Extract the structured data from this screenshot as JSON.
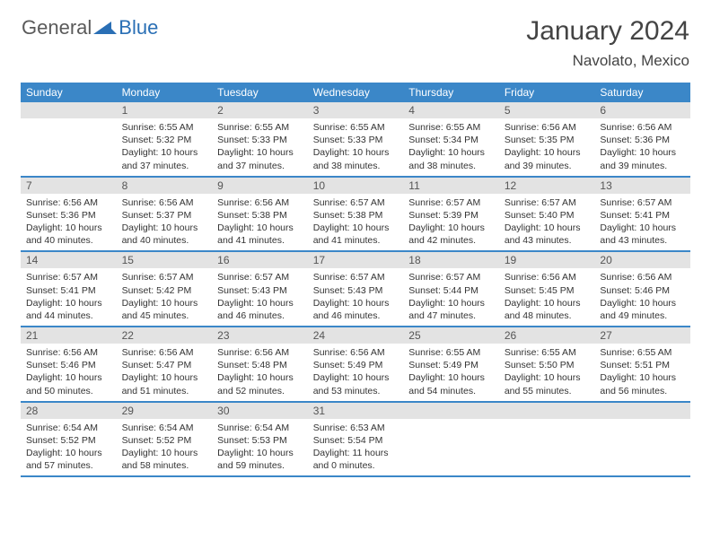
{
  "brand": {
    "part1": "General",
    "part2": "Blue"
  },
  "title": "January 2024",
  "location": "Navolato, Mexico",
  "colors": {
    "header_bg": "#3b87c8",
    "daynum_bg": "#e3e3e3",
    "border": "#3b87c8",
    "text": "#333333",
    "brand_gray": "#5a5a5a",
    "brand_blue": "#2a6fb5"
  },
  "weekdays": [
    "Sunday",
    "Monday",
    "Tuesday",
    "Wednesday",
    "Thursday",
    "Friday",
    "Saturday"
  ],
  "start_offset": 1,
  "days": [
    {
      "n": 1,
      "sr": "6:55 AM",
      "ss": "5:32 PM",
      "dl": "10 hours and 37 minutes."
    },
    {
      "n": 2,
      "sr": "6:55 AM",
      "ss": "5:33 PM",
      "dl": "10 hours and 37 minutes."
    },
    {
      "n": 3,
      "sr": "6:55 AM",
      "ss": "5:33 PM",
      "dl": "10 hours and 38 minutes."
    },
    {
      "n": 4,
      "sr": "6:55 AM",
      "ss": "5:34 PM",
      "dl": "10 hours and 38 minutes."
    },
    {
      "n": 5,
      "sr": "6:56 AM",
      "ss": "5:35 PM",
      "dl": "10 hours and 39 minutes."
    },
    {
      "n": 6,
      "sr": "6:56 AM",
      "ss": "5:36 PM",
      "dl": "10 hours and 39 minutes."
    },
    {
      "n": 7,
      "sr": "6:56 AM",
      "ss": "5:36 PM",
      "dl": "10 hours and 40 minutes."
    },
    {
      "n": 8,
      "sr": "6:56 AM",
      "ss": "5:37 PM",
      "dl": "10 hours and 40 minutes."
    },
    {
      "n": 9,
      "sr": "6:56 AM",
      "ss": "5:38 PM",
      "dl": "10 hours and 41 minutes."
    },
    {
      "n": 10,
      "sr": "6:57 AM",
      "ss": "5:38 PM",
      "dl": "10 hours and 41 minutes."
    },
    {
      "n": 11,
      "sr": "6:57 AM",
      "ss": "5:39 PM",
      "dl": "10 hours and 42 minutes."
    },
    {
      "n": 12,
      "sr": "6:57 AM",
      "ss": "5:40 PM",
      "dl": "10 hours and 43 minutes."
    },
    {
      "n": 13,
      "sr": "6:57 AM",
      "ss": "5:41 PM",
      "dl": "10 hours and 43 minutes."
    },
    {
      "n": 14,
      "sr": "6:57 AM",
      "ss": "5:41 PM",
      "dl": "10 hours and 44 minutes."
    },
    {
      "n": 15,
      "sr": "6:57 AM",
      "ss": "5:42 PM",
      "dl": "10 hours and 45 minutes."
    },
    {
      "n": 16,
      "sr": "6:57 AM",
      "ss": "5:43 PM",
      "dl": "10 hours and 46 minutes."
    },
    {
      "n": 17,
      "sr": "6:57 AM",
      "ss": "5:43 PM",
      "dl": "10 hours and 46 minutes."
    },
    {
      "n": 18,
      "sr": "6:57 AM",
      "ss": "5:44 PM",
      "dl": "10 hours and 47 minutes."
    },
    {
      "n": 19,
      "sr": "6:56 AM",
      "ss": "5:45 PM",
      "dl": "10 hours and 48 minutes."
    },
    {
      "n": 20,
      "sr": "6:56 AM",
      "ss": "5:46 PM",
      "dl": "10 hours and 49 minutes."
    },
    {
      "n": 21,
      "sr": "6:56 AM",
      "ss": "5:46 PM",
      "dl": "10 hours and 50 minutes."
    },
    {
      "n": 22,
      "sr": "6:56 AM",
      "ss": "5:47 PM",
      "dl": "10 hours and 51 minutes."
    },
    {
      "n": 23,
      "sr": "6:56 AM",
      "ss": "5:48 PM",
      "dl": "10 hours and 52 minutes."
    },
    {
      "n": 24,
      "sr": "6:56 AM",
      "ss": "5:49 PM",
      "dl": "10 hours and 53 minutes."
    },
    {
      "n": 25,
      "sr": "6:55 AM",
      "ss": "5:49 PM",
      "dl": "10 hours and 54 minutes."
    },
    {
      "n": 26,
      "sr": "6:55 AM",
      "ss": "5:50 PM",
      "dl": "10 hours and 55 minutes."
    },
    {
      "n": 27,
      "sr": "6:55 AM",
      "ss": "5:51 PM",
      "dl": "10 hours and 56 minutes."
    },
    {
      "n": 28,
      "sr": "6:54 AM",
      "ss": "5:52 PM",
      "dl": "10 hours and 57 minutes."
    },
    {
      "n": 29,
      "sr": "6:54 AM",
      "ss": "5:52 PM",
      "dl": "10 hours and 58 minutes."
    },
    {
      "n": 30,
      "sr": "6:54 AM",
      "ss": "5:53 PM",
      "dl": "10 hours and 59 minutes."
    },
    {
      "n": 31,
      "sr": "6:53 AM",
      "ss": "5:54 PM",
      "dl": "11 hours and 0 minutes."
    }
  ],
  "labels": {
    "sunrise": "Sunrise:",
    "sunset": "Sunset:",
    "daylight": "Daylight:"
  }
}
